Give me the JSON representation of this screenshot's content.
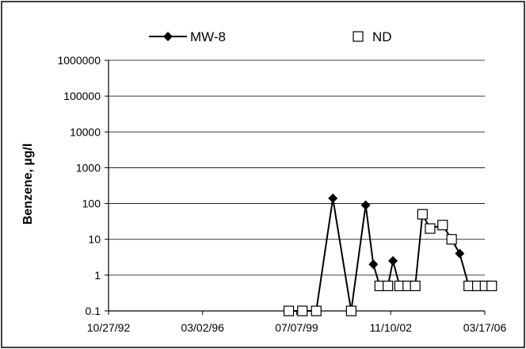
{
  "chart_data": {
    "type": "line",
    "y_scale": "log",
    "ylim": [
      0.1,
      1000000
    ],
    "yticks": [
      0.1,
      1,
      10,
      100,
      1000,
      10000,
      100000,
      1000000
    ],
    "ytick_labels": [
      "0.1",
      "1",
      "10",
      "100",
      "1000",
      "10000",
      "100000",
      "1000000"
    ],
    "xlim": [
      "10/27/92",
      "03/17/06"
    ],
    "xtick_labels": [
      "10/27/92",
      "03/02/96",
      "07/07/99",
      "11/10/02",
      "03/17/06"
    ],
    "ylabel": "Benzene, µg/l",
    "xlabel": "",
    "title": "",
    "grid": "horizontal",
    "legend": "top",
    "series": [
      {
        "name": "MW-8",
        "marker": "filled-diamond",
        "color": "#000000",
        "line": true,
        "points": [
          {
            "x": "03/27/99",
            "y": 0.1
          },
          {
            "x": "09/20/99",
            "y": 0.1
          },
          {
            "x": "03/18/00",
            "y": 0.1
          },
          {
            "x": "10/20/00",
            "y": 140
          },
          {
            "x": "06/15/01",
            "y": 0.1
          },
          {
            "x": "12/20/01",
            "y": 90
          },
          {
            "x": "03/30/02",
            "y": 2
          },
          {
            "x": "06/20/02",
            "y": 0.5
          },
          {
            "x": "10/05/02",
            "y": 0.5
          },
          {
            "x": "12/10/02",
            "y": 2.5
          },
          {
            "x": "03/05/03",
            "y": 0.5
          },
          {
            "x": "06/20/03",
            "y": 0.5
          },
          {
            "x": "09/25/03",
            "y": 0.5
          },
          {
            "x": "12/28/03",
            "y": 50
          },
          {
            "x": "04/05/04",
            "y": 20
          },
          {
            "x": "09/15/04",
            "y": 25
          },
          {
            "x": "01/10/05",
            "y": 10
          },
          {
            "x": "04/25/05",
            "y": 4
          },
          {
            "x": "08/20/05",
            "y": 0.5
          },
          {
            "x": "12/10/05",
            "y": 0.5
          },
          {
            "x": "03/20/06",
            "y": 0.5
          },
          {
            "x": "06/15/06",
            "y": 0.5
          }
        ]
      },
      {
        "name": "ND",
        "marker": "open-square",
        "color": "#000000",
        "line": false,
        "points": [
          {
            "x": "03/27/99",
            "y": 0.1
          },
          {
            "x": "09/20/99",
            "y": 0.1
          },
          {
            "x": "03/18/00",
            "y": 0.1
          },
          {
            "x": "06/15/01",
            "y": 0.1
          },
          {
            "x": "06/20/02",
            "y": 0.5
          },
          {
            "x": "10/05/02",
            "y": 0.5
          },
          {
            "x": "03/05/03",
            "y": 0.5
          },
          {
            "x": "06/20/03",
            "y": 0.5
          },
          {
            "x": "09/25/03",
            "y": 0.5
          },
          {
            "x": "12/28/03",
            "y": 50
          },
          {
            "x": "04/05/04",
            "y": 20
          },
          {
            "x": "09/15/04",
            "y": 25
          },
          {
            "x": "01/10/05",
            "y": 10
          },
          {
            "x": "08/20/05",
            "y": 0.5
          },
          {
            "x": "12/10/05",
            "y": 0.5
          },
          {
            "x": "03/20/06",
            "y": 0.5
          },
          {
            "x": "06/15/06",
            "y": 0.5
          }
        ]
      }
    ]
  }
}
